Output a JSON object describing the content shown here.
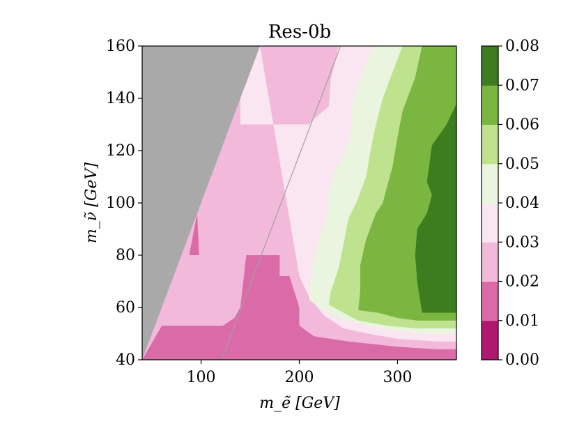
{
  "chart_data": {
    "type": "contour",
    "title": "Res-0b",
    "xlabel": "m_ẽ [GeV]",
    "ylabel": "m_ν̃ [GeV]",
    "xlim": [
      40,
      360
    ],
    "ylim": [
      40,
      160
    ],
    "x_ticks": [
      100,
      200,
      300
    ],
    "y_ticks": [
      40,
      60,
      80,
      100,
      120,
      140,
      160
    ],
    "colorbar": {
      "levels": [
        0.0,
        0.01,
        0.02,
        0.03,
        0.04,
        0.05,
        0.06,
        0.07,
        0.08
      ],
      "tick_labels": [
        "0.00",
        "0.01",
        "0.02",
        "0.03",
        "0.04",
        "0.05",
        "0.06",
        "0.07",
        "0.08"
      ],
      "colors": [
        "#b0186f",
        "#da6ba8",
        "#f2b9db",
        "#fae6f1",
        "#eaf5df",
        "#bfe28f",
        "#7bb641",
        "#3e7c20"
      ]
    },
    "excluded_region_color": "#a9a9a9",
    "contours": [
      {
        "level_band": "0.01-0.02",
        "points": [
          [
            40,
            40
          ],
          [
            60,
            40
          ],
          [
            145,
            40
          ],
          [
            155,
            40
          ],
          [
            170,
            40
          ],
          [
            200,
            40
          ],
          [
            250,
            41
          ],
          [
            300,
            41
          ],
          [
            340,
            41
          ],
          [
            360,
            42
          ],
          [
            360,
            40
          ]
        ]
      },
      {
        "level_band": "0.02-0.03",
        "points": [
          [
            40,
            40
          ],
          [
            89,
            40
          ],
          [
            60,
            40
          ]
        ]
      }
    ],
    "regions": [
      {
        "band": "0.01-0.02",
        "polygon": [
          [
            40,
            40
          ],
          [
            60,
            58
          ],
          [
            60,
            53
          ],
          [
            62,
            53
          ],
          [
            62,
            53
          ],
          [
            110,
            53
          ],
          [
            122,
            53
          ],
          [
            134,
            56
          ],
          [
            140,
            60
          ],
          [
            146,
            80
          ],
          [
            153,
            80
          ],
          [
            180,
            80
          ],
          [
            180,
            72
          ],
          [
            190,
            72
          ],
          [
            200,
            60
          ],
          [
            200,
            53
          ],
          [
            215,
            49
          ],
          [
            240,
            46
          ],
          [
            300,
            44
          ],
          [
            340,
            43
          ],
          [
            360,
            43
          ],
          [
            360,
            40
          ]
        ]
      },
      {
        "band": "0.01-0.02 patch",
        "polygon": [
          [
            80,
            80
          ],
          [
            98,
            80
          ],
          [
            96,
            96
          ],
          [
            94,
            80
          ]
        ]
      },
      {
        "band": "0.02-0.03",
        "polygon": [
          [
            40,
            40
          ],
          [
            40,
            40
          ],
          [
            60,
            58
          ],
          [
            60,
            58
          ],
          [
            135,
            140
          ],
          [
            140,
            140
          ],
          [
            140,
            130
          ],
          [
            210,
            130
          ],
          [
            228,
            145
          ],
          [
            232,
            147
          ],
          [
            235,
            137
          ],
          [
            225,
            123
          ],
          [
            214,
            120
          ],
          [
            205,
            115
          ],
          [
            200,
            110
          ],
          [
            198,
            102
          ],
          [
            195,
            96
          ],
          [
            190,
            90
          ],
          [
            185,
            87
          ],
          [
            180,
            80
          ],
          [
            170,
            80
          ],
          [
            180,
            72
          ],
          [
            190,
            72
          ],
          [
            200,
            60
          ],
          [
            200,
            53
          ],
          [
            215,
            49
          ],
          [
            240,
            46
          ],
          [
            300,
            44
          ],
          [
            340,
            43
          ],
          [
            360,
            43
          ],
          [
            360,
            44
          ],
          [
            300,
            46
          ],
          [
            240,
            49
          ],
          [
            225,
            53
          ],
          [
            215,
            57
          ],
          [
            205,
            62
          ],
          [
            200,
            66
          ],
          [
            190,
            72
          ]
        ]
      },
      {
        "band": "0.03-0.04",
        "polygon": []
      },
      {
        "band": "0.04-0.05",
        "polygon": []
      },
      {
        "band": "0.05-0.06",
        "polygon": []
      },
      {
        "band": "0.06-0.07",
        "polygon": []
      },
      {
        "band": "0.07-0.08",
        "polygon": []
      }
    ],
    "diagonal_line": [
      [
        121,
        40
      ],
      [
        242,
        160
      ]
    ]
  }
}
